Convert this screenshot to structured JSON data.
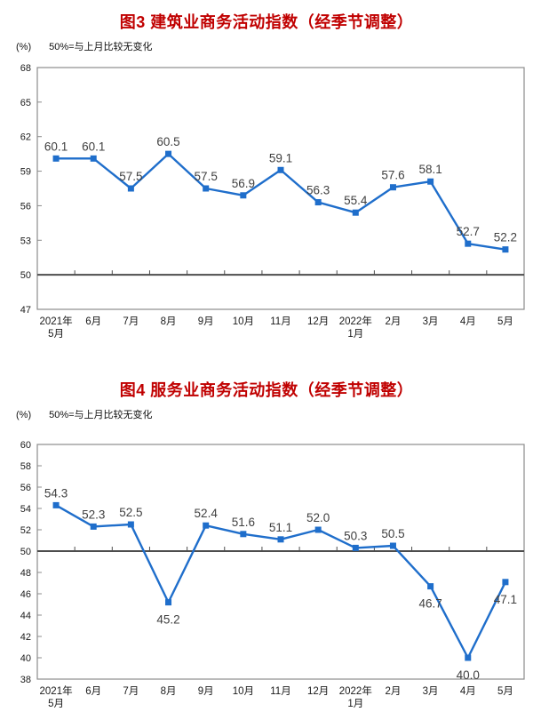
{
  "chart_data": [
    {
      "type": "line",
      "title": "图3  建筑业商务活动指数（经季节调整）",
      "ylabel": "(%)",
      "xlabel": "",
      "note": "50%=与上月比较无变化",
      "categories": [
        "2021年\n5月",
        "6月",
        "7月",
        "8月",
        "9月",
        "10月",
        "11月",
        "12月",
        "2022年\n1月",
        "2月",
        "3月",
        "4月",
        "5月"
      ],
      "values": [
        60.1,
        60.1,
        57.5,
        60.5,
        57.5,
        56.9,
        59.1,
        56.3,
        55.4,
        57.6,
        58.1,
        52.7,
        52.2
      ],
      "label_positions": [
        "above",
        "above",
        "above",
        "above",
        "above",
        "above",
        "above",
        "above",
        "above",
        "above",
        "above",
        "above",
        "above"
      ],
      "ylim": [
        47,
        68
      ],
      "ytick_step": 3,
      "baseline": 50,
      "grid": false,
      "legend": false,
      "title_color": "#c00000",
      "line_color": "#1f6ecb",
      "label_color": "#404040",
      "axis_color": "#8c8c8c",
      "baseline_color": "#4d4d4d"
    },
    {
      "type": "line",
      "title": "图4  服务业商务活动指数（经季节调整）",
      "ylabel": "(%)",
      "xlabel": "",
      "note": "50%=与上月比较无变化",
      "categories": [
        "2021年\n5月",
        "6月",
        "7月",
        "8月",
        "9月",
        "10月",
        "11月",
        "12月",
        "2022年\n1月",
        "2月",
        "3月",
        "4月",
        "5月"
      ],
      "values": [
        54.3,
        52.3,
        52.5,
        45.2,
        52.4,
        51.6,
        51.1,
        52.0,
        50.3,
        50.5,
        46.7,
        40.0,
        47.1
      ],
      "label_positions": [
        "above",
        "above",
        "above",
        "below",
        "above",
        "above",
        "above",
        "above",
        "above",
        "above",
        "below",
        "below",
        "below"
      ],
      "ylim": [
        38,
        60
      ],
      "ytick_step": 2,
      "baseline": 50,
      "grid": false,
      "legend": false,
      "title_color": "#c00000",
      "line_color": "#1f6ecb",
      "label_color": "#404040",
      "axis_color": "#8c8c8c",
      "baseline_color": "#4d4d4d"
    }
  ]
}
